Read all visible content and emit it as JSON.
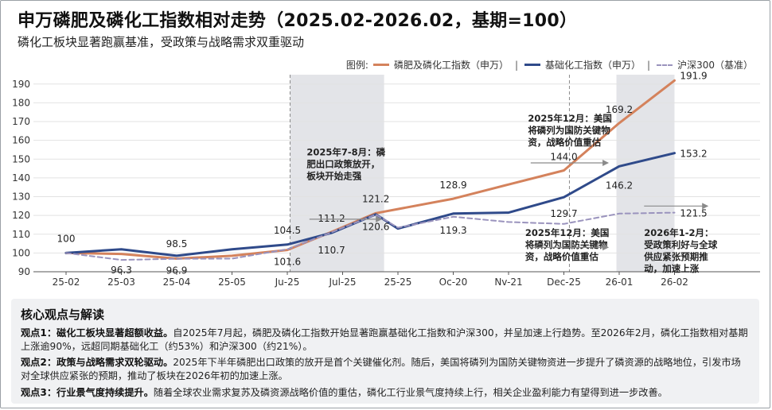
{
  "header": {
    "title": "申万磷肥及磷化工指数相对走势（2025.02-2026.02，基期=100）",
    "subtitle": "磷化工板块显著跑赢基准，受政策与战略需求双重驱动"
  },
  "legend": {
    "prefix": "图例:",
    "items": [
      "磷肥及磷化工指数（申万）",
      "基础化工指数（申万）",
      "沪深300（基准）"
    ]
  },
  "colors": {
    "phosphate": "#d4825c",
    "chemical": "#2f4a8a",
    "hs300": "#9a93bd",
    "band": "#e3e4e8",
    "grid": "#e2e2e2"
  },
  "chart_data": {
    "type": "line",
    "categories": [
      "25-02",
      "25-03",
      "25-04",
      "25-05",
      "Ju-25",
      "Jul-25",
      "25-25",
      "Oc-20",
      "Nv-21",
      "Dec-25",
      "26-01",
      "26-02"
    ],
    "ylim": [
      90,
      195
    ],
    "yticks": [
      90,
      100,
      110,
      120,
      130,
      140,
      150,
      160,
      170,
      180,
      190
    ],
    "series": [
      {
        "name": "磷肥及磷化工指数（申万）",
        "x": [
          0,
          1,
          2,
          3,
          4,
          4.8,
          5.6,
          7,
          8,
          9,
          10,
          11
        ],
        "values": [
          100,
          99.5,
          97,
          98.5,
          101.6,
          111.2,
          121.2,
          128.9,
          136.5,
          144.0,
          169.2,
          191.9
        ]
      },
      {
        "name": "基础化工指数（申万）",
        "x": [
          0,
          1,
          2,
          3,
          4,
          4.8,
          5.6,
          6,
          7,
          8,
          9,
          10,
          11
        ],
        "values": [
          100,
          102,
          98.5,
          102,
          104.5,
          110.7,
          120.6,
          113,
          121,
          121.5,
          129.7,
          146.2,
          153.2
        ]
      },
      {
        "name": "沪深300（基准）",
        "x": [
          0,
          1,
          2,
          3,
          4,
          4.8,
          5.6,
          6,
          7,
          8,
          9,
          10,
          11
        ],
        "values": [
          100,
          96.3,
          96.9,
          97,
          102,
          111,
          120.5,
          113.5,
          119.3,
          116.5,
          115.5,
          121,
          121.5
        ]
      }
    ],
    "data_labels": [
      {
        "text": "100",
        "x": 0,
        "y": 100,
        "dy": -14
      },
      {
        "text": "96.3",
        "x": 1,
        "y": 96.3,
        "dy": 17
      },
      {
        "text": "98.5",
        "x": 2,
        "y": 98.5,
        "dy": -11
      },
      {
        "text": "96.9",
        "x": 2,
        "y": 96.9,
        "dy": 19
      },
      {
        "text": "104.5",
        "x": 4,
        "y": 104.5,
        "dy": -14
      },
      {
        "text": "101.6",
        "x": 4,
        "y": 101.6,
        "dy": 19
      },
      {
        "text": "111.2",
        "x": 4.8,
        "y": 111.2,
        "dy": -13
      },
      {
        "text": "110.7",
        "x": 4.8,
        "y": 110.7,
        "dy": 26
      },
      {
        "text": "121.2",
        "x": 5.6,
        "y": 121.2,
        "dy": -14
      },
      {
        "text": "120.6",
        "x": 5.6,
        "y": 120.6,
        "dy": 20
      },
      {
        "text": "128.9",
        "x": 7,
        "y": 128.9,
        "dy": -13
      },
      {
        "text": "119.3",
        "x": 7,
        "y": 119.3,
        "dy": 21
      },
      {
        "text": "144.0",
        "x": 9,
        "y": 144.0,
        "dy": -13
      },
      {
        "text": "129.7",
        "x": 9,
        "y": 129.7,
        "dy": 25
      },
      {
        "text": "169.2",
        "x": 10,
        "y": 169.2,
        "dy": -13
      },
      {
        "text": "146.2",
        "x": 10,
        "y": 146.2,
        "dy": 28
      },
      {
        "text": "191.9",
        "x": 11,
        "y": 191.9,
        "dy": -2,
        "dx": 24
      },
      {
        "text": "153.2",
        "x": 11,
        "y": 153.2,
        "dy": 5,
        "dx": 24
      },
      {
        "text": "121.5",
        "x": 11,
        "y": 121.5,
        "dy": 5,
        "dx": 24
      }
    ],
    "bands": [
      {
        "from": 4.05,
        "to": 5.75
      },
      {
        "from": 9.95,
        "to": 11.0
      }
    ],
    "vlines": [
      4.05,
      9.1
    ],
    "annotations": [
      {
        "lines": [
          "2025年7-8月：磷",
          "肥出口政策放开，",
          "板块开始走强"
        ],
        "x": 4.35,
        "y": 152
      },
      {
        "lines": [
          "2025年12月：美国",
          "将磷列为国防关键物",
          "资，战略价值重估"
        ],
        "x": 8.35,
        "y": 170
      },
      {
        "lines": [
          "2025年12月：美国",
          "将磷列为国防关键物",
          "资，战略价值重估"
        ],
        "x": 8.3,
        "y": 109
      },
      {
        "lines": [
          "2026年1-2月：",
          "受政策利好与全球",
          "供应紧张预期推",
          "动，加速上涨"
        ],
        "x": 10.45,
        "y": 109
      }
    ]
  },
  "notes": {
    "heading": "核心观点与解读",
    "items": [
      {
        "lead": "观点1：磁化工板块显著超额收益。",
        "text": "自2025年7月起，磷肥及磷化工指数开始显著跑赢基础化工指数和沪深300，并呈加速上行趋势。至2026年2月，磷化工指数相对基期上涨逾90%，远超同期基础化工（约53%）和沪深300（约21%）。"
      },
      {
        "lead": "观点2：政策与战略需求双轮驱动。",
        "text": "2025年下半年磷肥出口政策的放开是首个关键催化剂。随后，美国将磷列为国防关键物资进一步提升了磷资源的战略地位，引发市场对全球供应紧张的预期，推动了板块在2026年初的加速上涨。"
      },
      {
        "lead": "观点3：行业景气度持续提升。",
        "text": "随着全球农业需求复苏及磷资源战略价值的重估，磷化工行业景气度持续上行，相关企业盈利能力有望得到进一步改善。"
      }
    ]
  }
}
